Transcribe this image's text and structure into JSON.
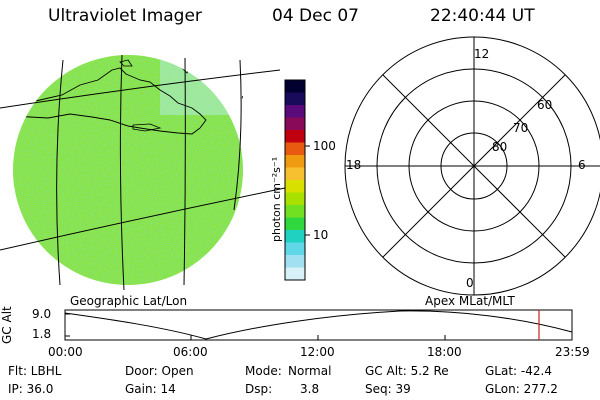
{
  "header": {
    "title": "Ultraviolet Imager",
    "date": "04 Dec 07",
    "time": "22:40:44 UT"
  },
  "colorbar": {
    "unit_label": "photon cm⁻²s⁻¹",
    "tick_labels": [
      "100",
      "10"
    ],
    "colors": [
      "#000030",
      "#1a0a5a",
      "#5a0a7a",
      "#8a0a5a",
      "#c00010",
      "#e85a10",
      "#f09a10",
      "#f6c030",
      "#d8e000",
      "#a8e000",
      "#70e020",
      "#30d840",
      "#20d0c0",
      "#60d8e8",
      "#a0e0f0",
      "#d8f0f8"
    ]
  },
  "map": {
    "label": "Geographic Lat/Lon",
    "fill_color": "#8ee23a"
  },
  "polar": {
    "label": "Apex MLat/MLT",
    "mlt_labels": [
      "12",
      "18",
      "6",
      "0"
    ],
    "lat_labels": [
      "60",
      "70",
      "80"
    ]
  },
  "timeline": {
    "ylabel": "GC Alt",
    "y_ticks": [
      "9.0",
      "1.8"
    ],
    "x_ticks": [
      "00:00",
      "06:00",
      "12:00",
      "18:00",
      "23:59"
    ],
    "marker_color": "#cc2020"
  },
  "status": {
    "row1": {
      "flt": "Flt: LBHL",
      "door": "Door: Open",
      "mode_label": "Mode:",
      "mode_value": "Normal",
      "gcalt": "GC Alt: 5.2 Re",
      "glat": "GLat: -42.4"
    },
    "row2": {
      "ip": "IP: 36.0",
      "gain": "Gain: 14",
      "dsp_label": "Dsp:",
      "dsp_value": "3.8",
      "seq": "Seq: 39",
      "glon": "GLon: 277.2"
    }
  }
}
